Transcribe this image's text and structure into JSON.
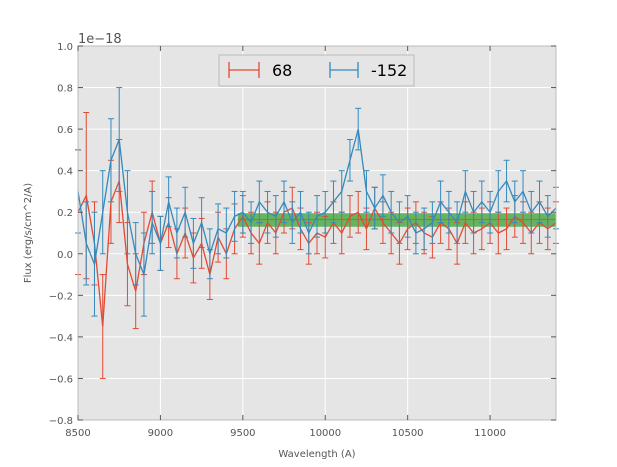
{
  "chart_data": {
    "type": "line",
    "title": "",
    "xlabel": "Wavelength (A)",
    "ylabel": "Flux (erg/s/cm^2/A)",
    "offset_text": "1e−18",
    "xlim": [
      8500,
      11400
    ],
    "ylim": [
      -0.8,
      1.0
    ],
    "x_ticks": [
      8500,
      9000,
      9500,
      10000,
      10500,
      11000
    ],
    "y_ticks": [
      -0.8,
      -0.6,
      -0.4,
      -0.2,
      0.0,
      0.2,
      0.4,
      0.6,
      0.8,
      1.0
    ],
    "x_tick_labels": [
      "8500",
      "9000",
      "9500",
      "10000",
      "10500",
      "11000"
    ],
    "y_tick_labels": [
      "−0.8",
      "−0.6",
      "−0.4",
      "−0.2",
      "0.0",
      "0.2",
      "0.4",
      "0.6",
      "0.8",
      "1.0"
    ],
    "grid": true,
    "legend_position": "top-center",
    "band": {
      "x_start": 9470,
      "x_end": 11400,
      "y_low": 0.13,
      "y_high": 0.195,
      "color": "#2ca02c",
      "line_y": 0.165,
      "line_color": "#8c8c00"
    },
    "series": [
      {
        "name": "68",
        "color": "#e24a33",
        "x": [
          8500,
          8550,
          8600,
          8650,
          8700,
          8750,
          8800,
          8850,
          8900,
          8950,
          9000,
          9050,
          9100,
          9150,
          9200,
          9250,
          9300,
          9350,
          9400,
          9450,
          9500,
          9550,
          9600,
          9650,
          9700,
          9750,
          9800,
          9850,
          9900,
          9950,
          10000,
          10050,
          10100,
          10150,
          10200,
          10250,
          10300,
          10350,
          10400,
          10450,
          10500,
          10550,
          10600,
          10650,
          10700,
          10750,
          10800,
          10850,
          10900,
          10950,
          11000,
          11050,
          11100,
          11150,
          11200,
          11250,
          11300,
          11350,
          11400
        ],
        "y": [
          0.2,
          0.28,
          0.05,
          -0.35,
          0.25,
          0.35,
          -0.05,
          -0.18,
          0.05,
          0.2,
          0.05,
          0.15,
          0.0,
          0.1,
          -0.02,
          0.05,
          -0.1,
          0.08,
          0.0,
          0.12,
          0.18,
          0.1,
          0.05,
          0.15,
          0.1,
          0.2,
          0.22,
          0.12,
          0.05,
          0.1,
          0.08,
          0.15,
          0.1,
          0.18,
          0.2,
          0.12,
          0.22,
          0.15,
          0.1,
          0.05,
          0.12,
          0.15,
          0.1,
          0.08,
          0.15,
          0.12,
          0.05,
          0.15,
          0.1,
          0.12,
          0.15,
          0.1,
          0.12,
          0.18,
          0.15,
          0.1,
          0.15,
          0.12,
          0.15
        ],
        "err": [
          0.3,
          0.4,
          0.2,
          0.25,
          0.2,
          0.2,
          0.2,
          0.18,
          0.15,
          0.15,
          0.13,
          0.12,
          0.12,
          0.12,
          0.12,
          0.12,
          0.12,
          0.12,
          0.12,
          0.12,
          0.1,
          0.1,
          0.1,
          0.1,
          0.1,
          0.1,
          0.1,
          0.1,
          0.1,
          0.1,
          0.1,
          0.1,
          0.1,
          0.1,
          0.1,
          0.1,
          0.1,
          0.1,
          0.1,
          0.1,
          0.1,
          0.1,
          0.1,
          0.1,
          0.1,
          0.1,
          0.1,
          0.1,
          0.1,
          0.1,
          0.1,
          0.1,
          0.1,
          0.1,
          0.1,
          0.1,
          0.1,
          0.1,
          0.1
        ]
      },
      {
        "name": "-152",
        "color": "#348abd",
        "x": [
          8500,
          8550,
          8600,
          8650,
          8700,
          8750,
          8800,
          8850,
          8900,
          8950,
          9000,
          9050,
          9100,
          9150,
          9200,
          9250,
          9300,
          9350,
          9400,
          9450,
          9500,
          9550,
          9600,
          9650,
          9700,
          9750,
          9800,
          9850,
          9900,
          9950,
          10000,
          10050,
          10100,
          10150,
          10200,
          10250,
          10300,
          10350,
          10400,
          10450,
          10500,
          10550,
          10600,
          10650,
          10700,
          10750,
          10800,
          10850,
          10900,
          10950,
          11000,
          11050,
          11100,
          11150,
          11200,
          11250,
          11300,
          11350,
          11400
        ],
        "y": [
          0.3,
          0.05,
          -0.05,
          0.2,
          0.45,
          0.55,
          0.2,
          0.0,
          -0.1,
          0.15,
          0.05,
          0.25,
          0.1,
          0.2,
          0.05,
          0.15,
          0.0,
          0.12,
          0.1,
          0.18,
          0.2,
          0.15,
          0.25,
          0.2,
          0.18,
          0.25,
          0.15,
          0.2,
          0.1,
          0.18,
          0.2,
          0.25,
          0.3,
          0.45,
          0.6,
          0.3,
          0.22,
          0.28,
          0.2,
          0.15,
          0.18,
          0.1,
          0.12,
          0.15,
          0.25,
          0.2,
          0.15,
          0.3,
          0.2,
          0.25,
          0.2,
          0.3,
          0.35,
          0.25,
          0.3,
          0.2,
          0.25,
          0.18,
          0.22
        ],
        "err": [
          0.2,
          0.2,
          0.25,
          0.2,
          0.2,
          0.25,
          0.2,
          0.15,
          0.2,
          0.15,
          0.13,
          0.12,
          0.12,
          0.12,
          0.12,
          0.12,
          0.12,
          0.12,
          0.12,
          0.12,
          0.1,
          0.1,
          0.1,
          0.1,
          0.1,
          0.1,
          0.1,
          0.1,
          0.1,
          0.1,
          0.1,
          0.1,
          0.1,
          0.1,
          0.1,
          0.1,
          0.1,
          0.1,
          0.1,
          0.1,
          0.1,
          0.1,
          0.1,
          0.1,
          0.1,
          0.1,
          0.1,
          0.1,
          0.1,
          0.1,
          0.1,
          0.1,
          0.1,
          0.1,
          0.1,
          0.1,
          0.1,
          0.1,
          0.1
        ]
      }
    ]
  }
}
